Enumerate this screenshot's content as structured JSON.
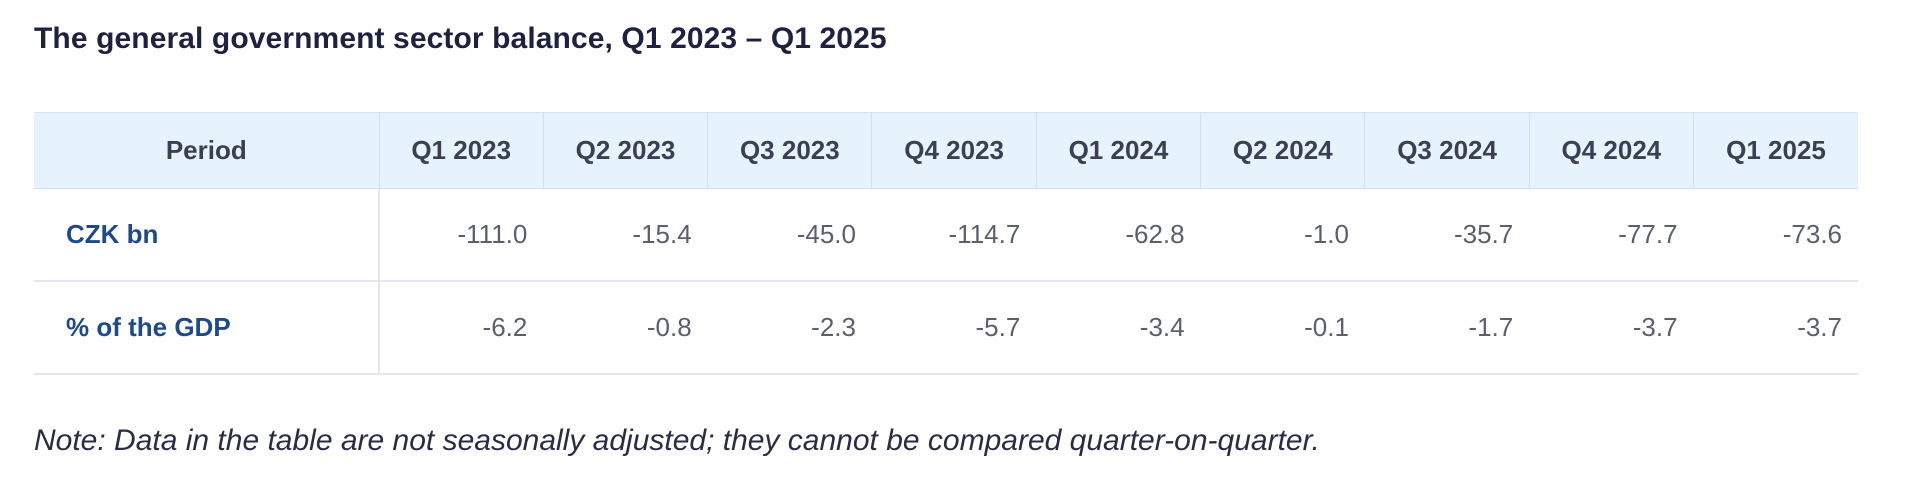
{
  "title": "The general government sector balance, Q1 2023 – Q1 2025",
  "table": {
    "header": {
      "period": "Period",
      "quarters": [
        "Q1 2023",
        "Q2 2023",
        "Q3 2023",
        "Q4 2023",
        "Q1 2024",
        "Q2 2024",
        "Q3 2024",
        "Q4 2024",
        "Q1 2025"
      ]
    },
    "rows": [
      {
        "label": "CZK bn",
        "values": [
          "-111.0",
          "-15.4",
          "-45.0",
          "-114.7",
          "-62.8",
          "-1.0",
          "-35.7",
          "-77.7",
          "-73.6"
        ]
      },
      {
        "label": "% of the GDP",
        "values": [
          "-6.2",
          "-0.8",
          "-2.3",
          "-5.7",
          "-3.4",
          "-0.1",
          "-1.7",
          "-3.7",
          "-3.7"
        ]
      }
    ]
  },
  "note": "Note: Data in the table are not seasonally adjusted; they cannot be compared quarter-on-quarter.",
  "colors": {
    "header_bg": "#e6f3fd",
    "row_label": "#1e4a8c",
    "value_text": "#5b5e6e",
    "title_text": "#1f2140"
  }
}
